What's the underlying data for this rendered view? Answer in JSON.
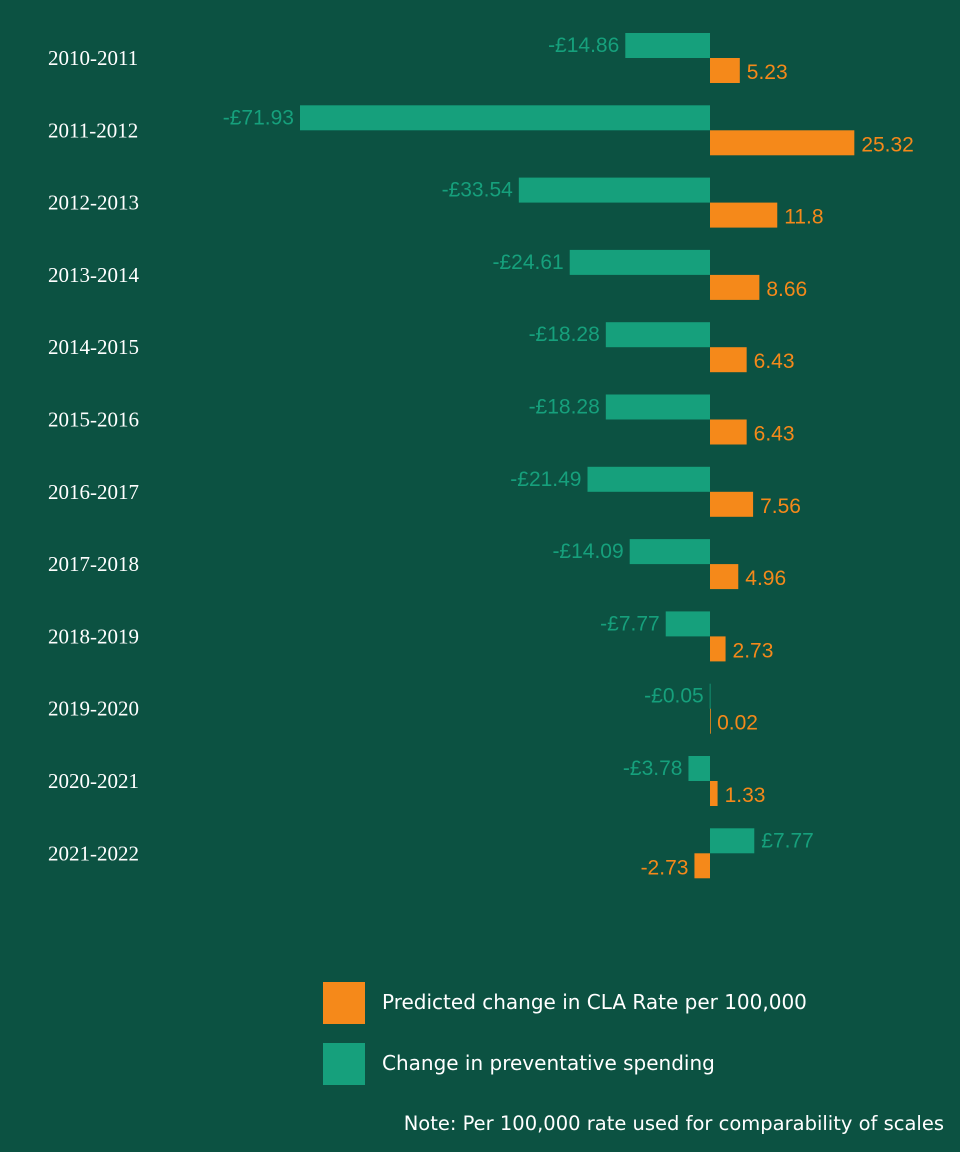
{
  "chart_data": {
    "type": "bar",
    "orientation": "horizontal",
    "categories": [
      "2010-2011",
      "2011-2012",
      "2012-2013",
      "2013-2014",
      "2014-2015",
      "2015-2016",
      "2016-2017",
      "2017-2018",
      "2018-2019",
      "2019-2020",
      "2020-2021",
      "2021-2022"
    ],
    "series": [
      {
        "name": "Change in preventative spending",
        "color": "#16a07c",
        "values": [
          -14.86,
          -71.93,
          -33.54,
          -24.61,
          -18.28,
          -18.28,
          -21.49,
          -14.09,
          -7.77,
          -0.05,
          -3.78,
          7.77
        ],
        "labels": [
          "-£14.86",
          "-£71.93",
          "-£33.54",
          "-£24.61",
          "-£18.28",
          "-£18.28",
          "-£21.49",
          "-£14.09",
          "-£7.77",
          "-£0.05",
          "-£3.78",
          "£7.77"
        ]
      },
      {
        "name": "Predicted change in CLA Rate per 100,000",
        "color": "#f5891a",
        "values": [
          5.23,
          25.32,
          11.8,
          8.66,
          6.43,
          6.43,
          7.56,
          4.96,
          2.73,
          0.02,
          1.33,
          -2.73
        ],
        "labels": [
          "5.23",
          "25.32",
          "11.8",
          "8.66",
          "6.43",
          "6.43",
          "7.56",
          "4.96",
          "2.73",
          "0.02",
          "1.33",
          "-2.73"
        ]
      }
    ],
    "grid": false,
    "axis_ticks": false,
    "legend_position": "bottom"
  },
  "legend": {
    "items": [
      {
        "label": "Predicted change in CLA Rate per 100,000",
        "color": "#f5891a"
      },
      {
        "label": "Change in preventative spending",
        "color": "#16a07c"
      }
    ]
  },
  "note": "Note: Per 100,000 rate used for comparability of scales"
}
